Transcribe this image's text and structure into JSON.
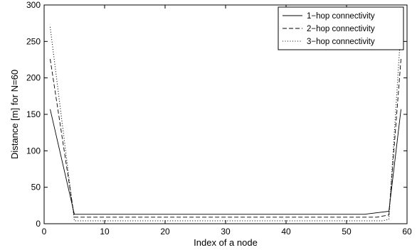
{
  "chart_data": {
    "type": "line",
    "title": "",
    "xlabel": "Index of a node",
    "ylabel": "Distance [m] for N=60",
    "xlim": [
      0,
      60
    ],
    "ylim": [
      0,
      300
    ],
    "xticks": [
      0,
      10,
      20,
      30,
      40,
      50,
      60
    ],
    "yticks": [
      0,
      50,
      100,
      150,
      200,
      250,
      300
    ],
    "grid": false,
    "legend_position": "top-right",
    "series": [
      {
        "name": "1−hop connectivity",
        "style": "solid",
        "x": [
          1,
          5,
          53,
          57,
          59
        ],
        "y": [
          157,
          13,
          13,
          17,
          157
        ]
      },
      {
        "name": "2−hop connectivity",
        "style": "dashed",
        "x": [
          1,
          5,
          55,
          57,
          59
        ],
        "y": [
          226,
          9,
          9,
          12,
          226
        ]
      },
      {
        "name": "3−hop connectivity",
        "style": "dotted",
        "x": [
          1,
          5,
          56,
          57,
          59
        ],
        "y": [
          270,
          4,
          4,
          6,
          270
        ]
      }
    ]
  }
}
